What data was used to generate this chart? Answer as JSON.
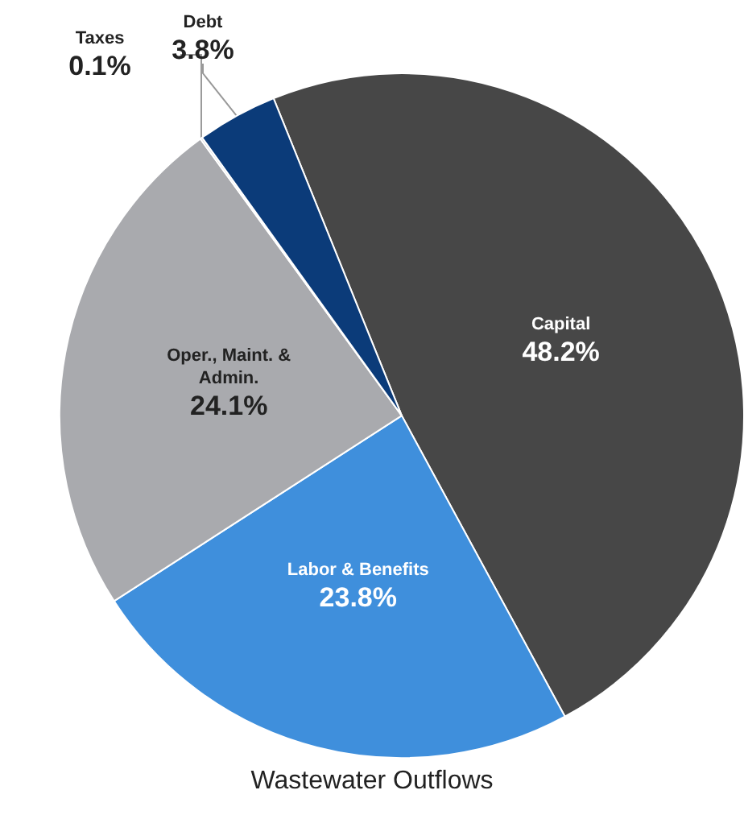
{
  "chart_data": {
    "type": "pie",
    "title": "Wastewater Outflows",
    "categories": [
      "Capital",
      "Labor & Benefits",
      "Oper., Maint. & Admin.",
      "Taxes",
      "Debt"
    ],
    "values": [
      48.2,
      23.8,
      24.1,
      0.1,
      3.8
    ],
    "colors": [
      "#474747",
      "#3f8fdc",
      "#a9aaae",
      "#c8c8c8",
      "#0b3b79"
    ],
    "value_labels": [
      "48.2%",
      "23.8%",
      "24.1%",
      "0.1%",
      "3.8%"
    ],
    "legend": false
  }
}
